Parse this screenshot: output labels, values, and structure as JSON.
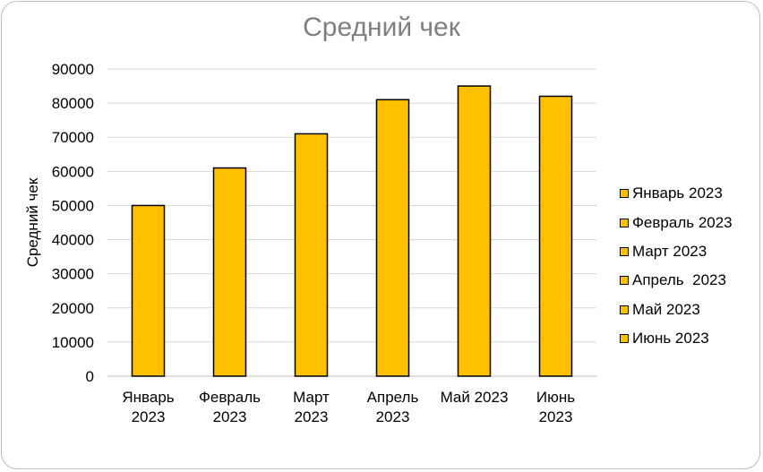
{
  "chart_data": {
    "type": "bar",
    "title": "Средний чек",
    "xlabel": "",
    "ylabel": "Средний чек",
    "ylim": [
      0,
      90000
    ],
    "yticks": [
      0,
      10000,
      20000,
      30000,
      40000,
      50000,
      60000,
      70000,
      80000,
      90000
    ],
    "categories": [
      "Январь 2023",
      "Февраль 2023",
      "Март 2023",
      "Апрель 2023",
      "Май 2023",
      "Июнь 2023"
    ],
    "category_labels": [
      [
        "Январь",
        "2023"
      ],
      [
        "Февраль",
        "2023"
      ],
      [
        "Март",
        "2023"
      ],
      [
        "Апрель",
        "2023"
      ],
      [
        "Май 2023"
      ],
      [
        "Июнь",
        "2023"
      ]
    ],
    "values": [
      50000,
      61000,
      71000,
      81000,
      85000,
      82000
    ],
    "bar_color": "#ffc000",
    "grid": true,
    "legend_position": "right",
    "legend": [
      "Январь 2023",
      "Февраль 2023",
      "Март 2023",
      "Апрель  2023",
      "Май 2023",
      "Июнь 2023"
    ]
  }
}
